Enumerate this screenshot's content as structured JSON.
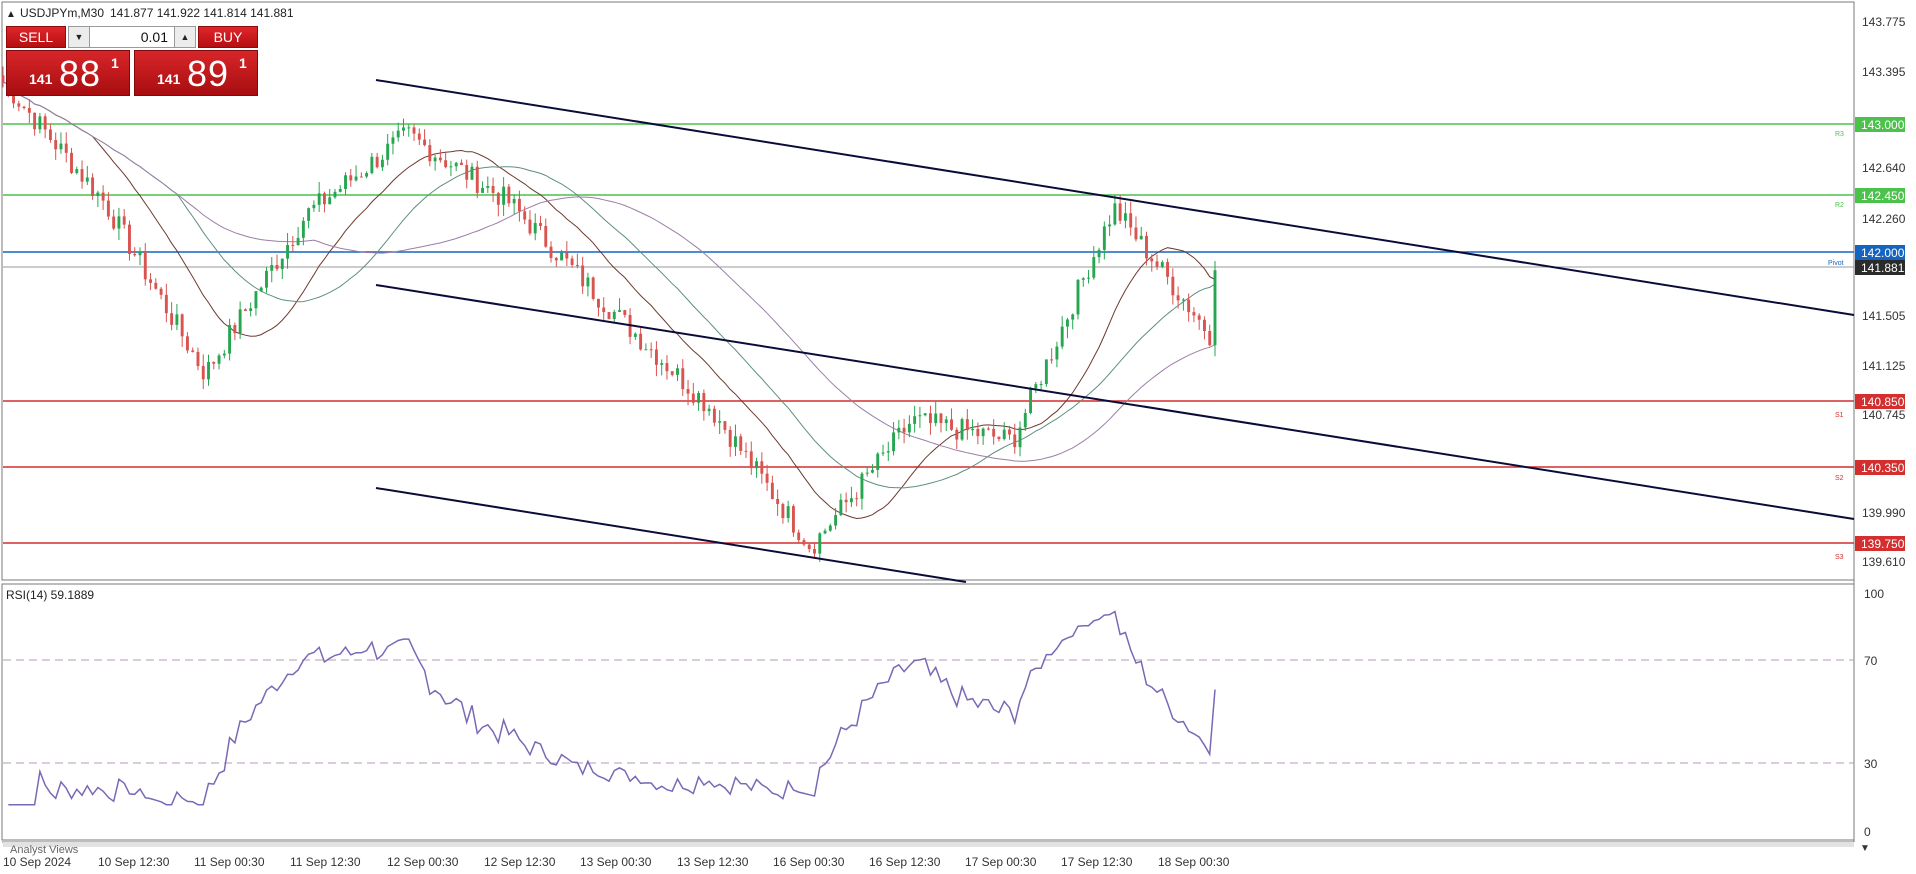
{
  "header": {
    "symbol_text": "USDJPYm,M30",
    "ohlc_text": "141.877 141.922 141.814 141.881"
  },
  "trade_panel": {
    "sell_label": "SELL",
    "buy_label": "BUY",
    "volume": "0.01",
    "sell_price": {
      "prefix": "141",
      "big": "88",
      "sup": "1"
    },
    "buy_price": {
      "prefix": "141",
      "big": "89",
      "sup": "1"
    }
  },
  "price_axis": {
    "ticks": [
      "143.775",
      "143.395",
      "142.640",
      "142.260",
      "141.505",
      "141.125",
      "140.745",
      "139.990",
      "139.610"
    ]
  },
  "levels": [
    {
      "label": "143.000",
      "price": 143.0,
      "tag": "R3",
      "color": "#4cc24c"
    },
    {
      "label": "142.450",
      "price": 142.45,
      "tag": "R2",
      "color": "#4cc24c"
    },
    {
      "label": "142.000",
      "price": 142.0,
      "tag": "Pivot",
      "color": "#1565c0"
    },
    {
      "label": "141.881",
      "price": 141.881,
      "tag": "",
      "color": "#2b2b2b"
    },
    {
      "label": "140.850",
      "price": 140.85,
      "tag": "S1",
      "color": "#d32f2f"
    },
    {
      "label": "140.350",
      "price": 140.35,
      "tag": "S2",
      "color": "#d32f2f"
    },
    {
      "label": "139.750",
      "price": 139.75,
      "tag": "S3",
      "color": "#d32f2f"
    }
  ],
  "rsi": {
    "label": "RSI(14) 59.1889",
    "ticks": [
      "100",
      "70",
      "30",
      "0"
    ]
  },
  "time_axis": {
    "labels": [
      "10 Sep 2024",
      "10 Sep 12:30",
      "11 Sep 00:30",
      "11 Sep 12:30",
      "12 Sep 00:30",
      "12 Sep 12:30",
      "13 Sep 00:30",
      "13 Sep 12:30",
      "16 Sep 00:30",
      "16 Sep 12:30",
      "17 Sep 00:30",
      "17 Sep 12:30",
      "18 Sep 00:30"
    ]
  },
  "footer": {
    "analyst_views": "Analyst Views"
  },
  "colors": {
    "bull": "#26a650",
    "bear": "#d9534f",
    "rsi": "#7b68b5",
    "channel": "#0b0b3a",
    "ma_fast": "#6d3a2e",
    "ma_mid": "#5e8f82",
    "ma_slow": "#9b7fa6"
  },
  "chart_data": {
    "type": "candlestick",
    "symbol": "USDJPYm",
    "timeframe": "M30",
    "close_path": [
      [
        "10 Sep 2024",
        143.3
      ],
      [
        "10 Sep 12:30",
        142.4
      ],
      [
        "11 Sep 00:30",
        141.1
      ],
      [
        "11 Sep 12:30",
        142.3
      ],
      [
        "12 Sep 00:30",
        142.9
      ],
      [
        "12 Sep 12:30",
        142.4
      ],
      [
        "13 Sep 00:30",
        141.6
      ],
      [
        "13 Sep 12:30",
        140.85
      ],
      [
        "16 Sep 00:30",
        139.8
      ],
      [
        "16 Sep 12:30",
        140.75
      ],
      [
        "17 Sep 00:30",
        140.6
      ],
      [
        "17 Sep 12:30",
        142.35
      ],
      [
        "18 Sep 00:30",
        141.35
      ]
    ],
    "last_close": 141.881,
    "rsi_last": 59.1889,
    "rsi_levels": [
      70,
      30
    ],
    "y_range": [
      139.55,
      143.9
    ]
  }
}
